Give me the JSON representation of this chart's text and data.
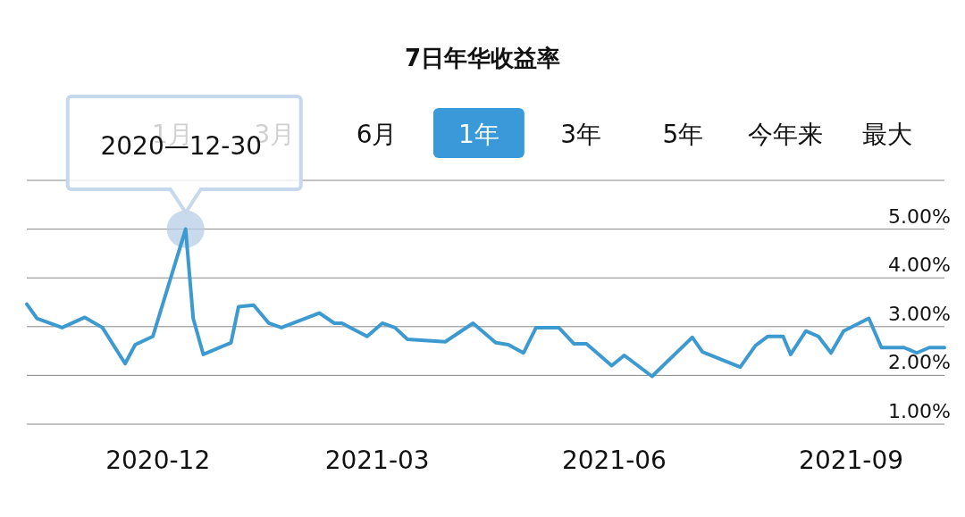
{
  "chart_data": {
    "type": "line",
    "title": "7日年华收益率",
    "x": [
      "2020-10-28",
      "2020-11-01",
      "2020-11-11",
      "2020-11-20",
      "2020-11-27",
      "2020-12-06",
      "2020-12-10",
      "2020-12-17",
      "2020-12-30",
      "2021-01-02",
      "2021-01-06",
      "2021-01-17",
      "2021-01-20",
      "2021-01-26",
      "2021-02-01",
      "2021-02-06",
      "2021-02-21",
      "2021-02-27",
      "2021-03-02",
      "2021-03-12",
      "2021-03-18",
      "2021-03-23",
      "2021-03-28",
      "2021-04-12",
      "2021-04-23",
      "2021-05-02",
      "2021-05-07",
      "2021-05-13",
      "2021-05-18",
      "2021-05-27",
      "2021-06-02",
      "2021-06-07",
      "2021-06-17",
      "2021-06-22",
      "2021-07-03",
      "2021-07-19",
      "2021-07-23",
      "2021-08-07",
      "2021-08-13",
      "2021-08-18",
      "2021-08-24",
      "2021-08-27",
      "2021-09-02",
      "2021-09-07",
      "2021-09-12",
      "2021-09-17",
      "2021-09-27",
      "2021-10-02",
      "2021-10-11",
      "2021-10-16",
      "2021-10-21",
      "2021-10-27"
    ],
    "series": [
      {
        "color": "#3d9ad1",
        "values": [
          3.46,
          3.17,
          2.98,
          3.19,
          2.98,
          2.24,
          2.63,
          2.8,
          5.0,
          3.17,
          2.43,
          2.67,
          3.41,
          3.44,
          3.07,
          2.98,
          3.28,
          3.07,
          3.07,
          2.8,
          3.07,
          2.98,
          2.74,
          2.69,
          3.07,
          2.67,
          2.63,
          2.46,
          2.98,
          2.98,
          2.65,
          2.65,
          2.2,
          2.41,
          1.98,
          2.78,
          2.48,
          2.17,
          2.61,
          2.8,
          2.8,
          2.43,
          2.91,
          2.8,
          2.46,
          2.91,
          3.17,
          2.57,
          2.57,
          2.46,
          2.57,
          2.57
        ]
      }
    ],
    "xlim": [
      "2020-10-28",
      "2021-10-27"
    ],
    "xticks": [
      {
        "value": "2020-12-19",
        "label": "2020-12"
      },
      {
        "value": "2021-03-16",
        "label": "2021-03"
      },
      {
        "value": "2021-06-18",
        "label": "2021-06"
      },
      {
        "value": "2021-09-20",
        "label": "2021-09"
      }
    ],
    "ylim": [
      1,
      6
    ],
    "yticks": [
      {
        "value": 1,
        "label": "1.00%"
      },
      {
        "value": 2,
        "label": "2.00%"
      },
      {
        "value": 3,
        "label": "3.00%"
      },
      {
        "value": 4,
        "label": "4.00%"
      },
      {
        "value": 5,
        "label": "5.00%"
      },
      {
        "value": 6,
        "label": null
      }
    ],
    "grid": "y",
    "marker": "none",
    "line_style": "solid",
    "annotations": [
      "1月",
      "3月",
      "6月",
      "1年",
      "3年",
      "5年",
      "今年来",
      "最大",
      {
        "text": "2020—12-30",
        "x": "2020-12-30",
        "y": 5.0
      }
    ]
  }
}
